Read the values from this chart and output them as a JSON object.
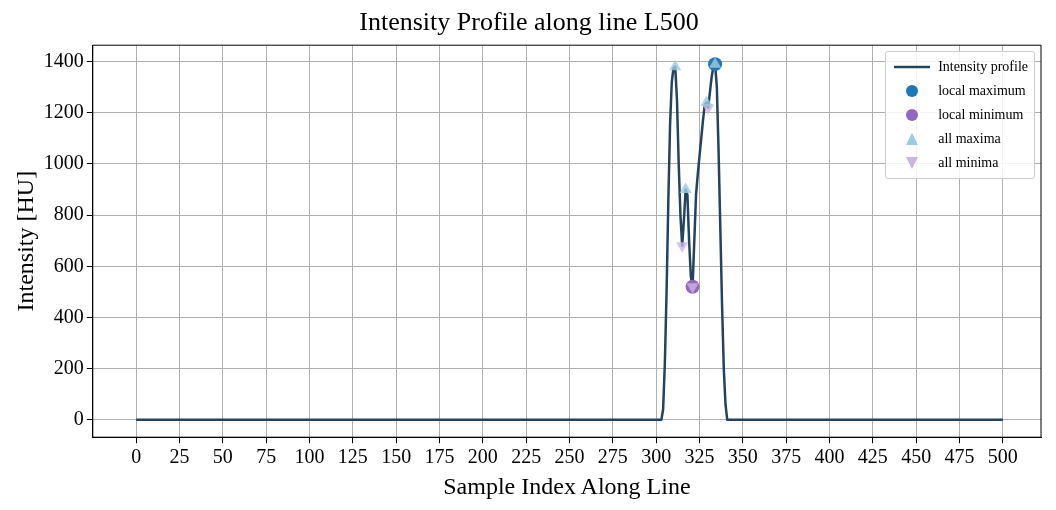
{
  "chart_data": {
    "type": "line",
    "title": "Intensity Profile along line L500",
    "xlabel": "Sample Index Along Line",
    "ylabel": "Intensity [HU]",
    "xlim": [
      -25,
      522
    ],
    "xticks": [
      0,
      25,
      50,
      75,
      100,
      125,
      150,
      175,
      200,
      225,
      250,
      275,
      300,
      325,
      350,
      375,
      400,
      425,
      450,
      475,
      500
    ],
    "ylim": [
      -68,
      1464
    ],
    "yticks": [
      0,
      200,
      400,
      600,
      800,
      1000,
      1200,
      1400
    ],
    "grid": true,
    "legend": "top right",
    "series": [
      {
        "name": "Intensity profile",
        "color": "#24435c",
        "marker": "none",
        "x": [
          0,
          303,
          304,
          305,
          306,
          307,
          308,
          309,
          310,
          311,
          312,
          313,
          314,
          315,
          316,
          317,
          318,
          319,
          320,
          321,
          322,
          323,
          324,
          325,
          326,
          327,
          328,
          329,
          330,
          331,
          332,
          333,
          334,
          335,
          336,
          337,
          338,
          339,
          340,
          341,
          500
        ],
        "values": [
          0,
          0,
          40,
          220,
          500,
          850,
          1150,
          1320,
          1375,
          1380,
          1250,
          1000,
          800,
          680,
          780,
          900,
          880,
          700,
          560,
          520,
          700,
          880,
          960,
          1030,
          1100,
          1170,
          1230,
          1240,
          1220,
          1280,
          1340,
          1380,
          1390,
          1300,
          1050,
          750,
          450,
          200,
          60,
          0,
          0
        ]
      },
      {
        "name": "local maximum",
        "type": "scatter",
        "color": "#1f77b4",
        "marker": "circle",
        "x": [
          334
        ],
        "values": [
          1390
        ]
      },
      {
        "name": "local minimum",
        "type": "scatter",
        "color": "#9467bd",
        "marker": "circle",
        "x": [
          321
        ],
        "values": [
          520
        ]
      },
      {
        "name": "all maxima",
        "type": "scatter",
        "color": "#9ecae1",
        "marker": "triangle",
        "x": [
          311,
          317,
          329,
          334
        ],
        "values": [
          1380,
          900,
          1240,
          1390
        ]
      },
      {
        "name": "all minima",
        "type": "scatter",
        "color": "#cbb5e3",
        "marker": "triangle-down",
        "x": [
          315,
          321,
          330
        ],
        "values": [
          680,
          520,
          1220
        ]
      }
    ]
  }
}
